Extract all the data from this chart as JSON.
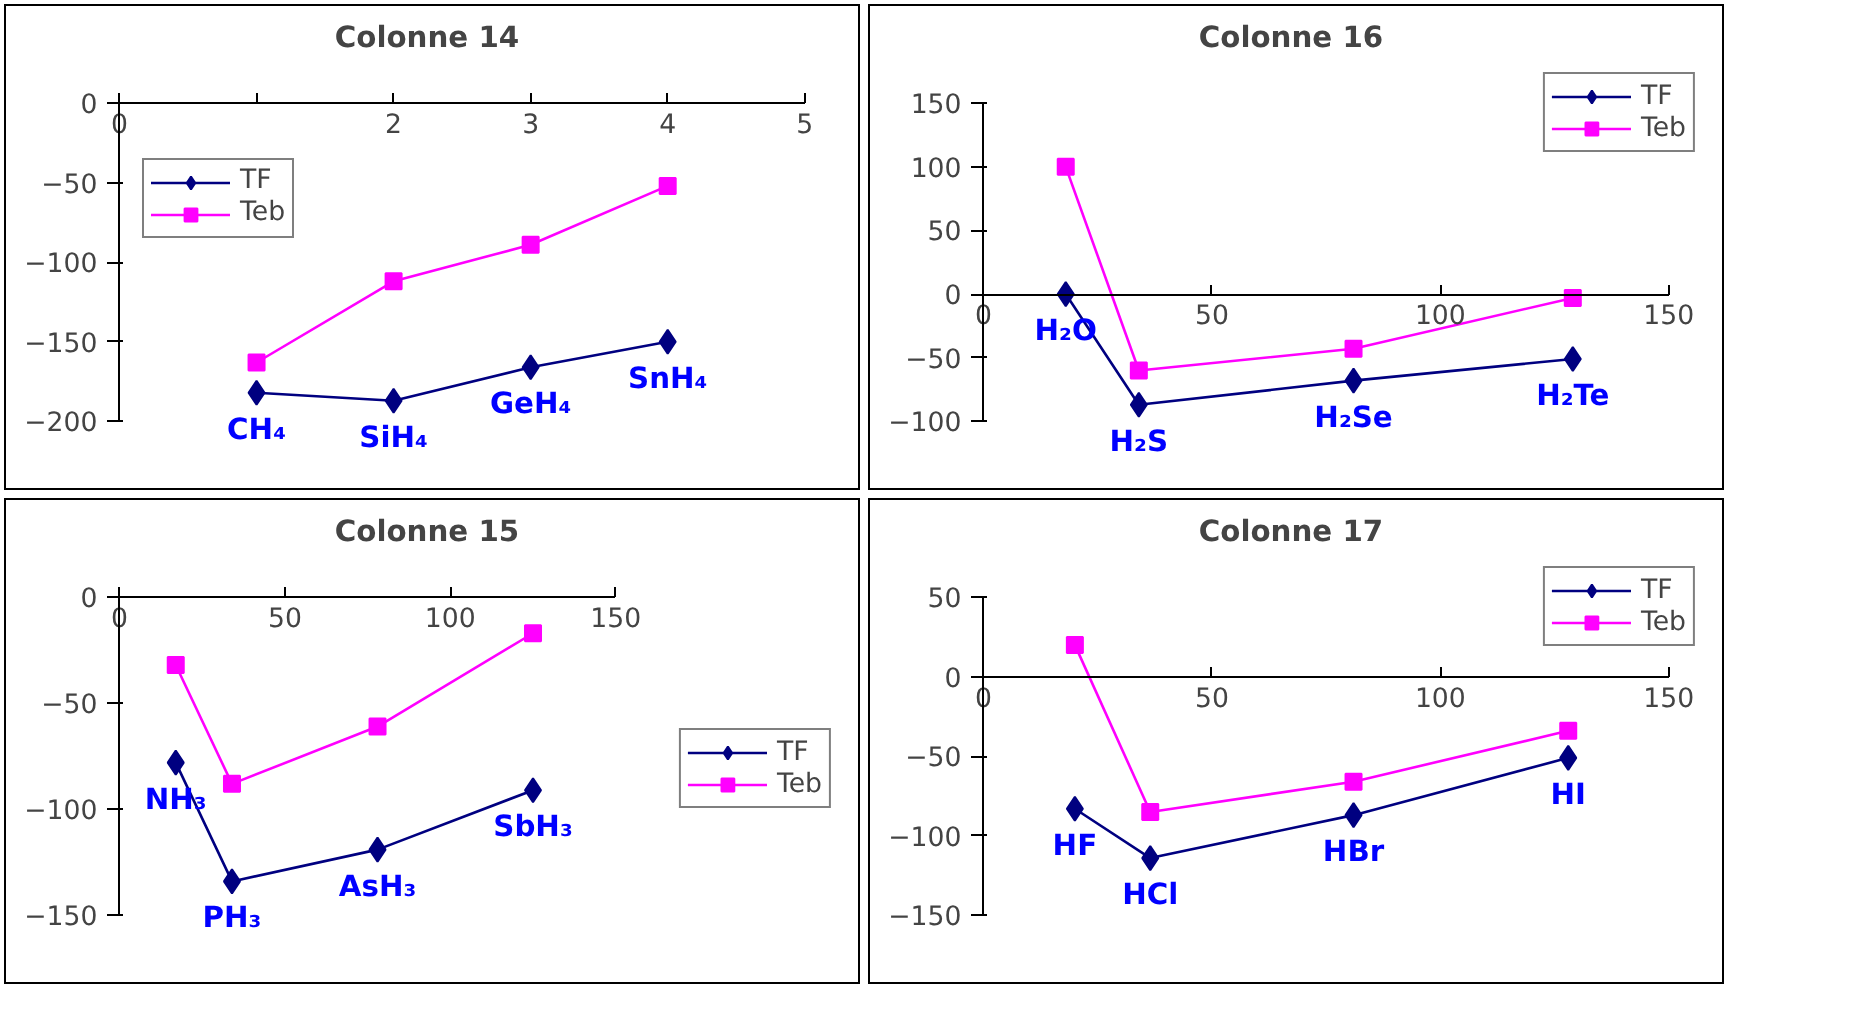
{
  "chart_data": [
    {
      "type": "line",
      "title": "Colonne 14",
      "xlim": [
        0,
        5
      ],
      "ylim": [
        -200,
        0
      ],
      "xticks": [
        0,
        {
          "value": 1,
          "label": null
        },
        2,
        3,
        4,
        5
      ],
      "yticks": [
        0,
        -50,
        -100,
        -150,
        -200
      ],
      "grid": false,
      "legend": "top left",
      "line_style": "solid",
      "x": [
        1,
        2,
        3,
        4
      ],
      "series": [
        {
          "name": "TF",
          "color": "#000080",
          "marker": "diamond",
          "values": [
            -182,
            -187,
            -166,
            -150
          ]
        },
        {
          "name": "Teb",
          "color": "#ff00ff",
          "marker": "square",
          "values": [
            -163,
            -112,
            -89,
            -52
          ]
        }
      ],
      "annotations": [
        "CH₄",
        "SiH₄",
        "GeH₄",
        "SnH₄"
      ]
    },
    {
      "type": "line",
      "title": "Colonne 16",
      "xlim": [
        0,
        150
      ],
      "ylim": [
        -100,
        150
      ],
      "xticks": [
        0,
        50,
        100,
        150
      ],
      "yticks": [
        150,
        100,
        50,
        0,
        -50,
        -100
      ],
      "grid": false,
      "legend": "top right",
      "line_style": "solid",
      "x": [
        18,
        34,
        81,
        129
      ],
      "series": [
        {
          "name": "TF",
          "color": "#000080",
          "marker": "diamond",
          "values": [
            0,
            -87,
            -68,
            -51
          ]
        },
        {
          "name": "Teb",
          "color": "#ff00ff",
          "marker": "square",
          "values": [
            100,
            -60,
            -43,
            -3
          ]
        }
      ],
      "annotations": [
        "H₂O",
        "H₂S",
        "H₂Se",
        "H₂Te"
      ]
    },
    {
      "type": "line",
      "title": "Colonne 15",
      "xlim": [
        0,
        150
      ],
      "ylim": [
        -150,
        0
      ],
      "xticks": [
        0,
        50,
        100,
        150
      ],
      "yticks": [
        0,
        -50,
        -100,
        -150
      ],
      "grid": false,
      "legend": "right",
      "line_style": "solid",
      "x": [
        17,
        34,
        78,
        125
      ],
      "series": [
        {
          "name": "TF",
          "color": "#000080",
          "marker": "diamond",
          "values": [
            -78,
            -134,
            -119,
            -91
          ]
        },
        {
          "name": "Teb",
          "color": "#ff00ff",
          "marker": "square",
          "values": [
            -32,
            -88,
            -61,
            -17
          ]
        }
      ],
      "annotations": [
        "NH₃",
        "PH₃",
        "AsH₃",
        "SbH₃"
      ]
    },
    {
      "type": "line",
      "title": "Colonne 17",
      "xlim": [
        0,
        150
      ],
      "ylim": [
        -150,
        50
      ],
      "xticks": [
        0,
        50,
        100,
        150
      ],
      "yticks": [
        50,
        0,
        -50,
        -100,
        -150
      ],
      "grid": false,
      "legend": "top right",
      "line_style": "solid",
      "x": [
        20,
        36.5,
        81,
        128
      ],
      "series": [
        {
          "name": "TF",
          "color": "#000080",
          "marker": "diamond",
          "values": [
            -83,
            -114,
            -87,
            -51
          ]
        },
        {
          "name": "Teb",
          "color": "#ff00ff",
          "marker": "square",
          "values": [
            20,
            -85,
            -66,
            -34
          ]
        }
      ],
      "annotations": [
        "HF",
        "HCl",
        "HBr",
        "HI"
      ]
    }
  ]
}
